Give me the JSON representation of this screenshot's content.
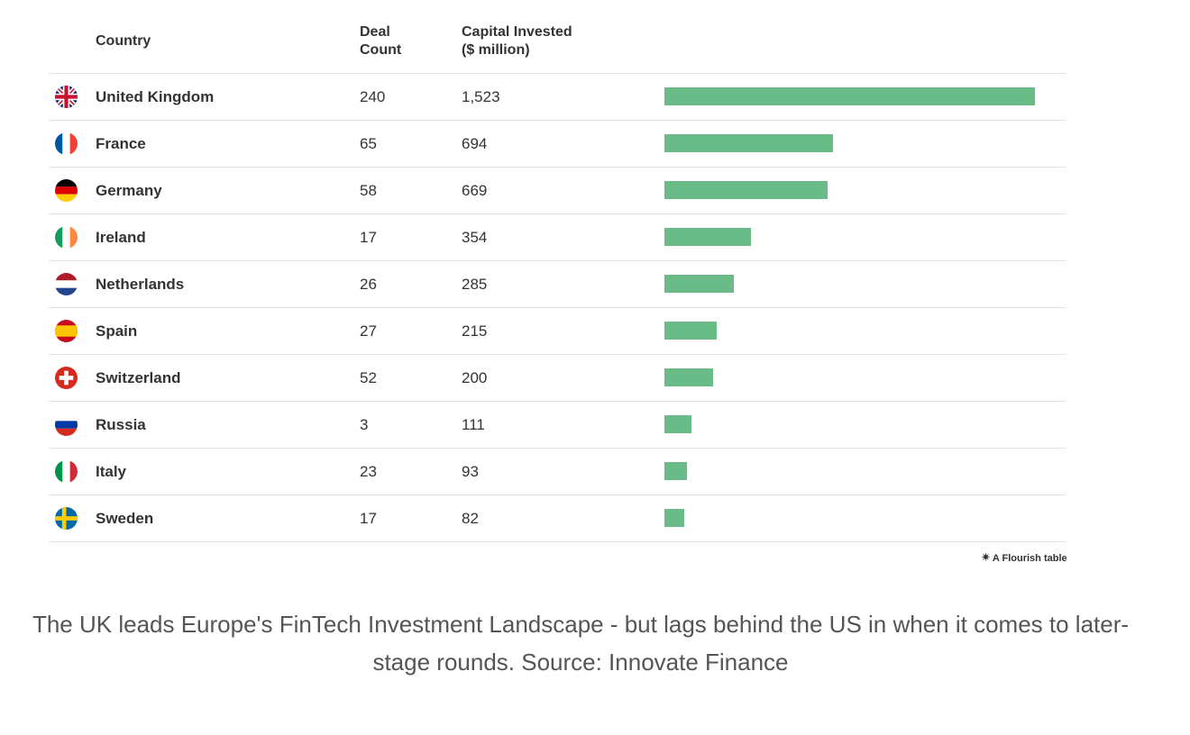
{
  "chart_data": {
    "type": "table",
    "columns": [
      "Country",
      "Deal Count",
      "Capital Invested ($ million)"
    ],
    "column_headers": {
      "country": "Country",
      "deals_line1": "Deal",
      "deals_line2": "Count",
      "capital_line1": "Capital Invested",
      "capital_line2": "($ million)"
    },
    "bar_max": 1523,
    "bar_color": "#69bb88",
    "rows": [
      {
        "country": "United Kingdom",
        "flag": "gb-flag-icon",
        "deals": "240",
        "capital": "1,523",
        "value": 1523
      },
      {
        "country": "France",
        "flag": "fr-flag-icon",
        "deals": "65",
        "capital": "694",
        "value": 694
      },
      {
        "country": "Germany",
        "flag": "de-flag-icon",
        "deals": "58",
        "capital": "669",
        "value": 669
      },
      {
        "country": "Ireland",
        "flag": "ie-flag-icon",
        "deals": "17",
        "capital": "354",
        "value": 354
      },
      {
        "country": "Netherlands",
        "flag": "nl-flag-icon",
        "deals": "26",
        "capital": "285",
        "value": 285
      },
      {
        "country": "Spain",
        "flag": "es-flag-icon",
        "deals": "27",
        "capital": "215",
        "value": 215
      },
      {
        "country": "Switzerland",
        "flag": "ch-flag-icon",
        "deals": "52",
        "capital": "200",
        "value": 200
      },
      {
        "country": "Russia",
        "flag": "ru-flag-icon",
        "deals": "3",
        "capital": "111",
        "value": 111
      },
      {
        "country": "Italy",
        "flag": "it-flag-icon",
        "deals": "23",
        "capital": "93",
        "value": 93
      },
      {
        "country": "Sweden",
        "flag": "se-flag-icon",
        "deals": "17",
        "capital": "82",
        "value": 82
      }
    ]
  },
  "credit": {
    "icon": "flourish-star-icon",
    "label": "A Flourish table"
  },
  "caption": {
    "text": "The UK leads Europe's FinTech Investment Landscape - but lags behind the US in when it comes to later-stage rounds. Source: Innovate Finance"
  }
}
